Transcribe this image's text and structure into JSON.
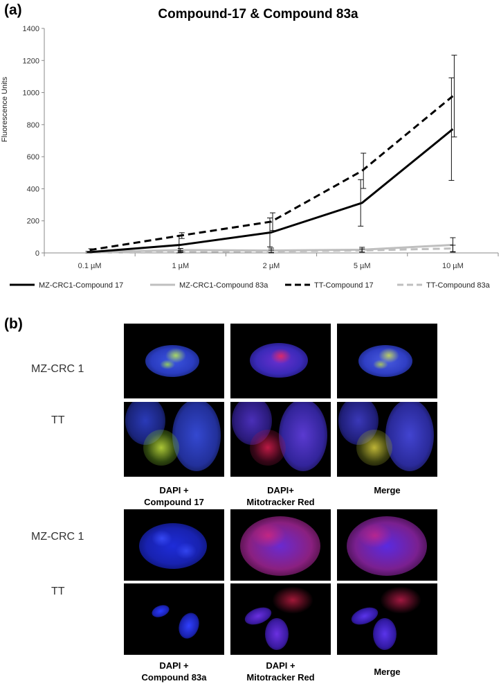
{
  "panel_a_label": "(a)",
  "panel_b_label": "(b)",
  "chart_data": {
    "type": "line",
    "title": "Compound-17 & Compound 83a",
    "xlabel": "",
    "ylabel": "Fluorescence Units",
    "categories": [
      "0.1 µM",
      "1 µM",
      "2 µM",
      "5 µM",
      "10 µM"
    ],
    "ylim": [
      0,
      1400
    ],
    "yticks": [
      0,
      200,
      400,
      600,
      800,
      1000,
      1200,
      1400
    ],
    "grid": false,
    "legend_position": "bottom",
    "series": [
      {
        "name": "MZ-CRC1-Compound 17",
        "values": [
          5,
          50,
          128,
          312,
          772
        ],
        "errors": [
          5,
          55,
          90,
          145,
          320
        ],
        "color": "#000000",
        "dash": "solid"
      },
      {
        "name": "MZ-CRC1-Compound 83a",
        "values": [
          5,
          18,
          15,
          20,
          50
        ],
        "errors": [
          3,
          10,
          15,
          15,
          45
        ],
        "color": "#bfbfbf",
        "dash": "solid"
      },
      {
        "name": "TT-Compound 17",
        "values": [
          18,
          108,
          195,
          512,
          978
        ],
        "errors": [
          8,
          18,
          55,
          110,
          255
        ],
        "color": "#000000",
        "dash": "dashed"
      },
      {
        "name": "TT-Compound 83a",
        "values": [
          3,
          8,
          10,
          15,
          28
        ],
        "errors": [
          2,
          6,
          8,
          10,
          20
        ],
        "color": "#bfbfbf",
        "dash": "dashed"
      }
    ]
  },
  "panel_b": {
    "top": {
      "rows": [
        "MZ-CRC 1",
        "TT"
      ],
      "captions": [
        "DAPI +\nCompound 17",
        "DAPI+\nMitotracker Red",
        "Merge"
      ]
    },
    "bottom": {
      "rows": [
        "MZ-CRC 1",
        "TT"
      ],
      "captions": [
        "DAPI +\nCompound 83a",
        "DAPI +\nMitotracker Red",
        "Merge"
      ]
    }
  }
}
